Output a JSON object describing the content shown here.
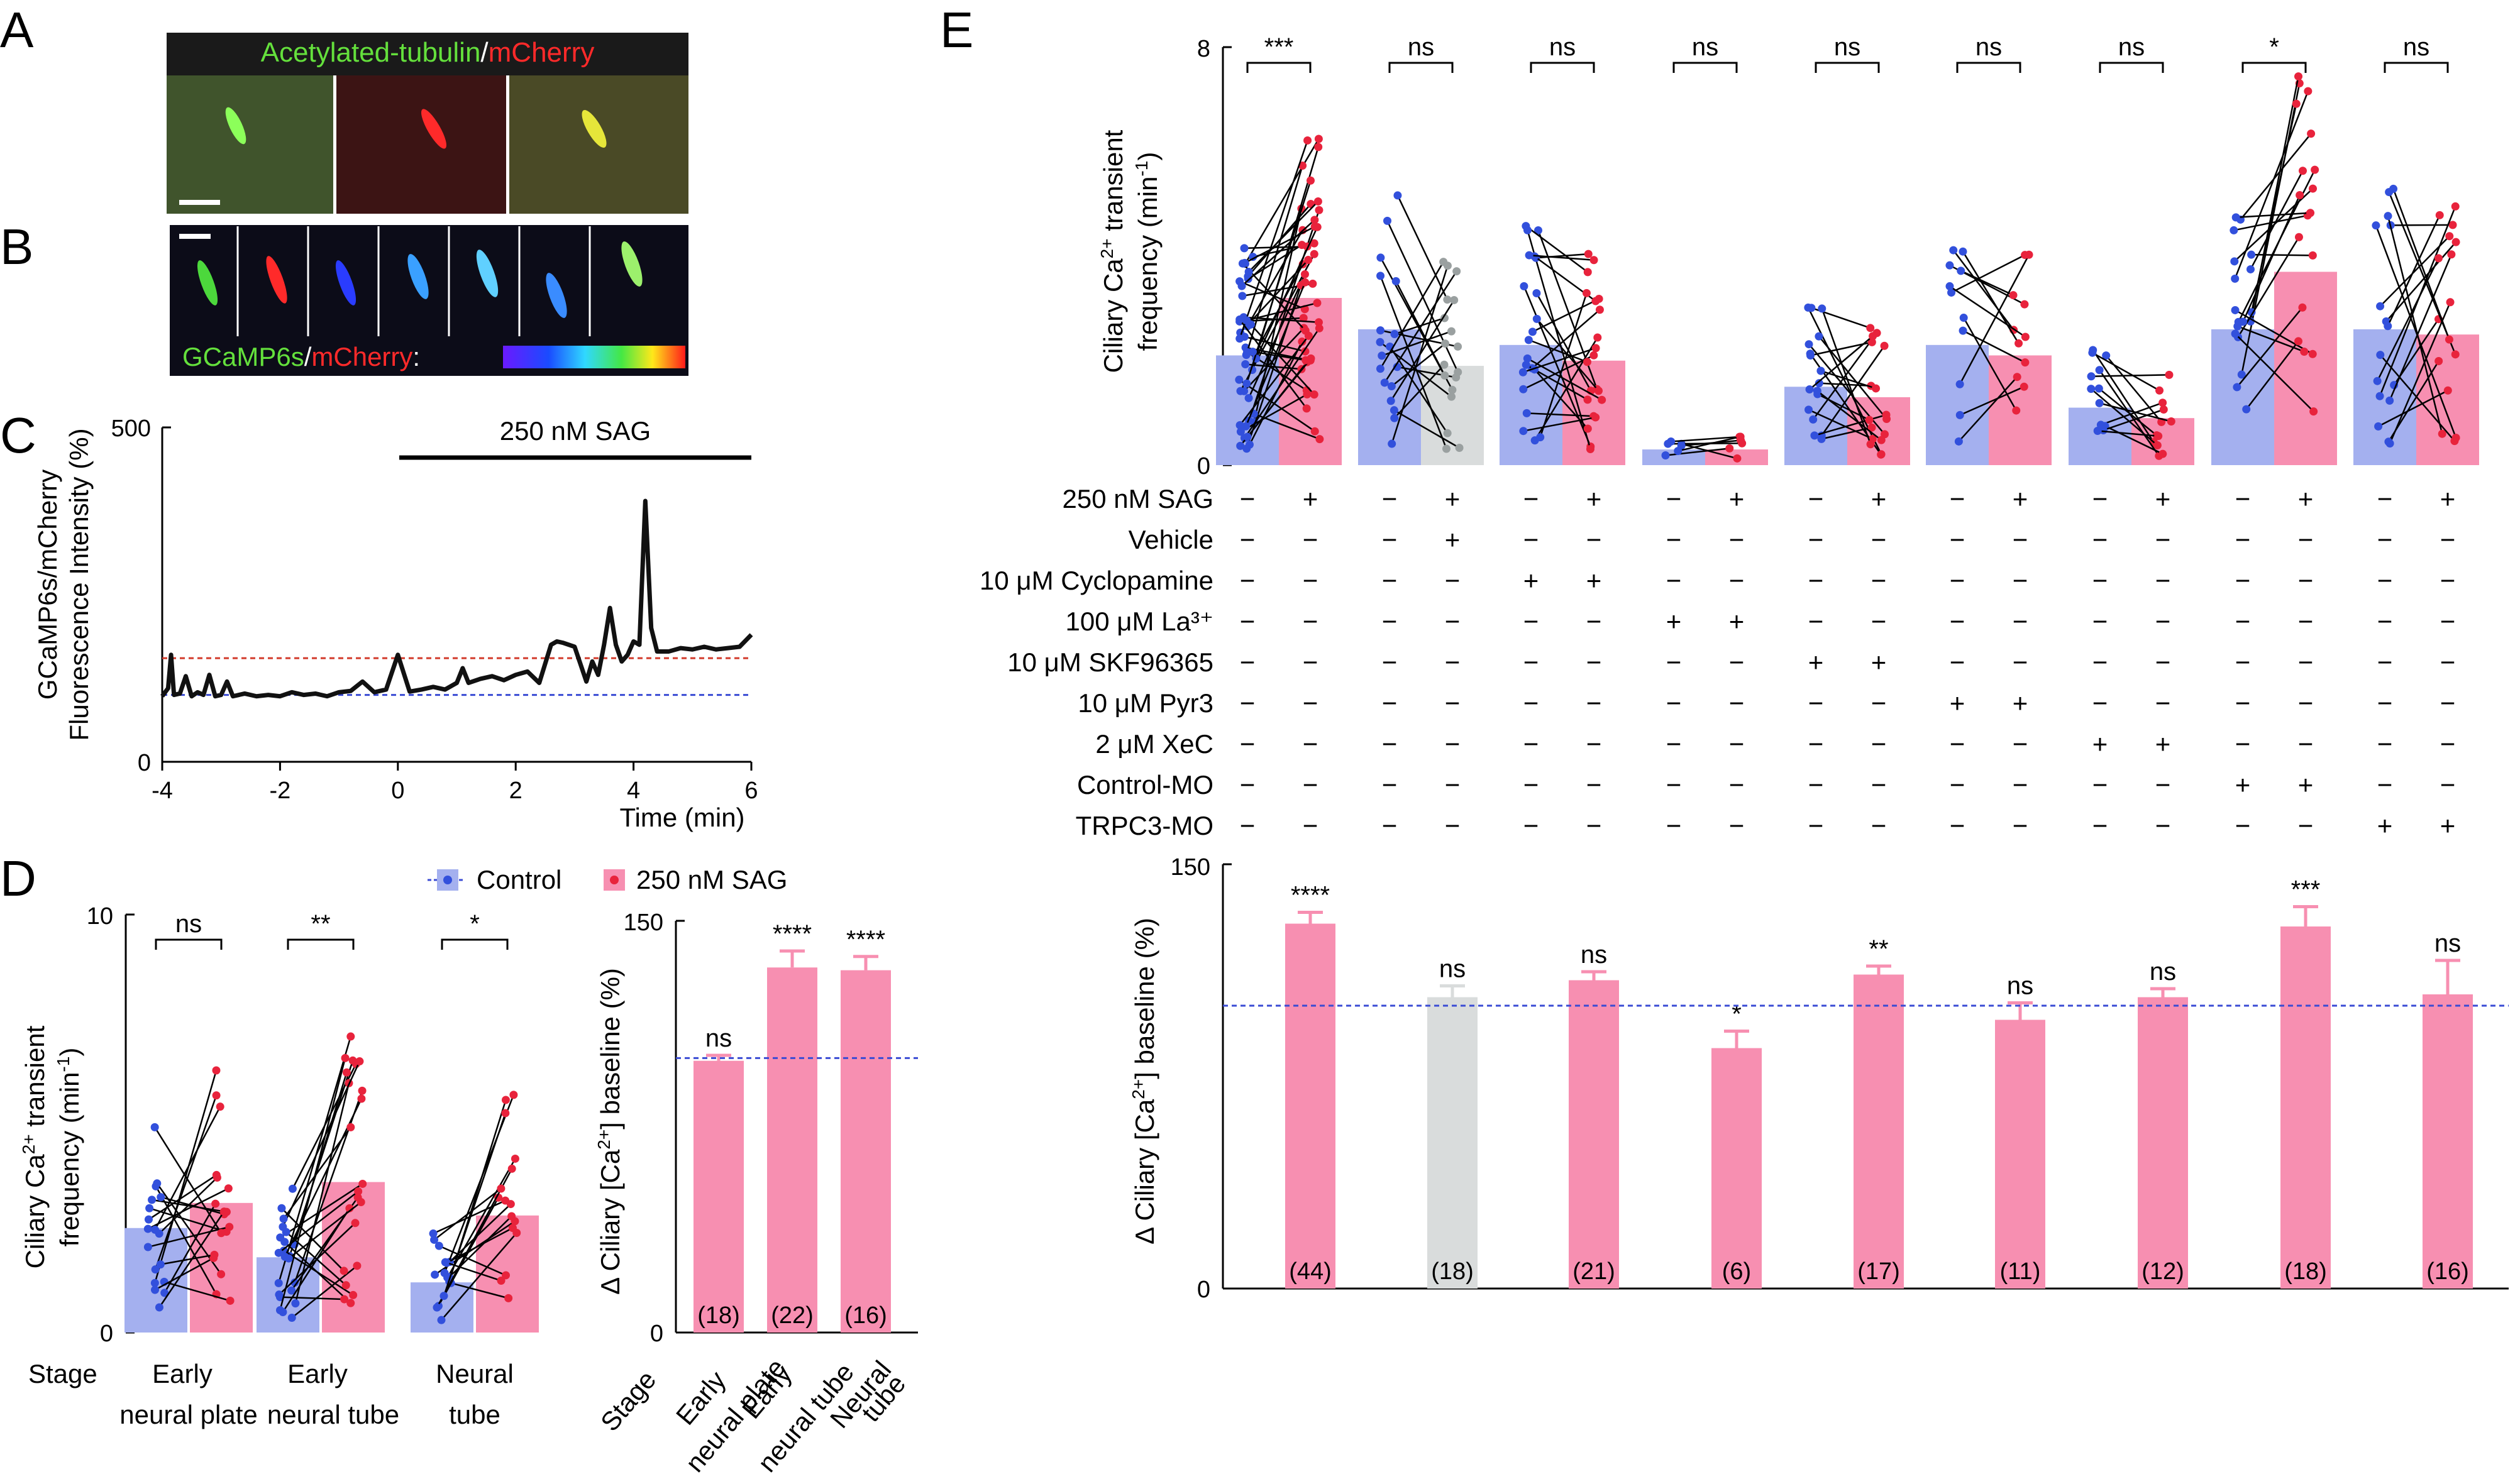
{
  "panels": {
    "A": {
      "letter": "A",
      "title_green": "Acetylated-tubulin",
      "title_sep": "/",
      "title_red": "mCherry"
    },
    "B": {
      "letter": "B",
      "legend_green": "GCaMP6s",
      "legend_sep": "/",
      "legend_red": "mCherry",
      "legend_colon": ":"
    },
    "C": {
      "letter": "C",
      "bar_label": "250 nM SAG",
      "ylabel_line1": "GCaMP6s/mCherry",
      "ylabel_line2": "Fluorescence Intensity (%)",
      "xlabel": "Time (min)",
      "y_ticks": [
        "0",
        "500"
      ],
      "x_ticks": [
        "-4",
        "-2",
        "0",
        "2",
        "4",
        "6"
      ]
    },
    "D": {
      "letter": "D",
      "legend_control": "Control",
      "legend_sag": "250 nM SAG",
      "ylabel_line1": "Ciliary Ca",
      "ylabel_sup": "2+",
      "ylabel_line1b": " transient",
      "ylabel_line2": "frequency (min",
      "ylabel_sup2": "-1",
      "ylabel_line2b": ")",
      "y_ticks": [
        "0",
        "10"
      ],
      "stage_label": "Stage",
      "groups": [
        {
          "line1": "Early",
          "line2": "neural plate",
          "sig": "ns"
        },
        {
          "line1": "Early",
          "line2": "neural tube",
          "sig": "**"
        },
        {
          "line1": "Neural",
          "line2": "tube",
          "sig": "*"
        }
      ],
      "right_ylabel": "Δ Ciliary [Ca",
      "right_ylabel_sup": "2+",
      "right_ylabel_end": "] baseline (%)",
      "right_y_ticks": [
        "0",
        "150"
      ],
      "right_sig": [
        "ns",
        "****",
        "****"
      ],
      "right_n": [
        "(18)",
        "(22)",
        "(16)"
      ]
    },
    "E": {
      "letter": "E",
      "ylabel_line1": "Ciliary Ca",
      "ylabel_sup": "2+",
      "ylabel_line1b": " transient",
      "ylabel_line2": "frequency (min",
      "ylabel_sup2": "-1",
      "ylabel_line2b": ")",
      "y_ticks": [
        "0",
        "8"
      ],
      "sig": [
        "***",
        "ns",
        "ns",
        "ns",
        "ns",
        "ns",
        "ns",
        "*",
        "ns"
      ],
      "treatments": [
        "250 nM SAG",
        "Vehicle",
        "10 μM Cyclopamine",
        "100 μM La³⁺",
        "10 μM SKF96365",
        "10 μM Pyr3",
        "2 μM XeC",
        "Control-MO",
        "TRPC3-MO"
      ],
      "treatment_matrix": [
        [
          "−",
          "+",
          "−",
          "+",
          "−",
          "+",
          "−",
          "+",
          "−",
          "+",
          "−",
          "+",
          "−",
          "+",
          "−",
          "+",
          "−",
          "+"
        ],
        [
          "−",
          "−",
          "−",
          "+",
          "−",
          "−",
          "−",
          "−",
          "−",
          "−",
          "−",
          "−",
          "−",
          "−",
          "−",
          "−",
          "−",
          "−"
        ],
        [
          "−",
          "−",
          "−",
          "−",
          "+",
          "+",
          "−",
          "−",
          "−",
          "−",
          "−",
          "−",
          "−",
          "−",
          "−",
          "−",
          "−",
          "−"
        ],
        [
          "−",
          "−",
          "−",
          "−",
          "−",
          "−",
          "+",
          "+",
          "−",
          "−",
          "−",
          "−",
          "−",
          "−",
          "−",
          "−",
          "−",
          "−"
        ],
        [
          "−",
          "−",
          "−",
          "−",
          "−",
          "−",
          "−",
          "−",
          "+",
          "+",
          "−",
          "−",
          "−",
          "−",
          "−",
          "−",
          "−",
          "−"
        ],
        [
          "−",
          "−",
          "−",
          "−",
          "−",
          "−",
          "−",
          "−",
          "−",
          "−",
          "+",
          "+",
          "−",
          "−",
          "−",
          "−",
          "−",
          "−"
        ],
        [
          "−",
          "−",
          "−",
          "−",
          "−",
          "−",
          "−",
          "−",
          "−",
          "−",
          "−",
          "−",
          "+",
          "+",
          "−",
          "−",
          "−",
          "−"
        ],
        [
          "−",
          "−",
          "−",
          "−",
          "−",
          "−",
          "−",
          "−",
          "−",
          "−",
          "−",
          "−",
          "−",
          "−",
          "+",
          "+",
          "−",
          "−"
        ],
        [
          "−",
          "−",
          "−",
          "−",
          "−",
          "−",
          "−",
          "−",
          "−",
          "−",
          "−",
          "−",
          "−",
          "−",
          "−",
          "−",
          "+",
          "+"
        ]
      ],
      "lower_ylabel": "Δ Ciliary [Ca",
      "lower_ylabel_sup": "2+",
      "lower_ylabel_end": "] baseline (%)",
      "lower_y_ticks": [
        "0",
        "150"
      ],
      "lower_sig": [
        "****",
        "ns",
        "ns",
        "*",
        "**",
        "ns",
        "ns",
        "***",
        "ns"
      ],
      "lower_n": [
        "(44)",
        "(18)",
        "(21)",
        "(6)",
        "(17)",
        "(11)",
        "(12)",
        "(18)",
        "(16)"
      ]
    }
  },
  "colors": {
    "control_bar": "#a4b0ef",
    "sag_bar": "#f78fb1",
    "vehicle_bar": "#d9dcdc",
    "control_dot": "#3250dc",
    "sag_dot": "#e8233c",
    "vehicle_dot": "#9aa0a0",
    "baseline_line": "#3a4bd4",
    "threshold_line": "#d23a2a"
  },
  "chart_data": [
    {
      "panel": "C",
      "type": "line",
      "xlabel": "Time (min)",
      "ylabel": "GCaMP6s/mCherry Fluorescence Intensity (%)",
      "xlim": [
        -4,
        6
      ],
      "ylim": [
        0,
        500
      ],
      "baseline": 100,
      "threshold": 155,
      "treatment_start": 0,
      "treatment_end": 6,
      "x": [
        -4.0,
        -3.9,
        -3.85,
        -3.8,
        -3.7,
        -3.6,
        -3.5,
        -3.4,
        -3.3,
        -3.2,
        -3.1,
        -3.0,
        -2.9,
        -2.8,
        -2.6,
        -2.4,
        -2.2,
        -2.0,
        -1.8,
        -1.6,
        -1.4,
        -1.2,
        -1.0,
        -0.8,
        -0.6,
        -0.4,
        -0.2,
        0.0,
        0.2,
        0.4,
        0.6,
        0.8,
        1.0,
        1.1,
        1.2,
        1.4,
        1.6,
        1.8,
        2.0,
        2.2,
        2.4,
        2.6,
        2.7,
        2.8,
        3.0,
        3.2,
        3.3,
        3.4,
        3.5,
        3.6,
        3.7,
        3.8,
        3.9,
        4.0,
        4.1,
        4.2,
        4.3,
        4.4,
        4.6,
        4.8,
        5.0,
        5.2,
        5.4,
        5.6,
        5.8,
        6.0
      ],
      "y": [
        98,
        110,
        160,
        100,
        102,
        128,
        98,
        104,
        100,
        130,
        98,
        100,
        120,
        98,
        102,
        98,
        100,
        98,
        104,
        100,
        102,
        98,
        104,
        106,
        120,
        104,
        108,
        160,
        105,
        108,
        112,
        108,
        118,
        140,
        118,
        124,
        128,
        122,
        130,
        135,
        118,
        175,
        180,
        178,
        172,
        120,
        150,
        130,
        175,
        230,
        175,
        150,
        160,
        180,
        175,
        390,
        200,
        165,
        165,
        170,
        168,
        172,
        168,
        170,
        172,
        190
      ]
    },
    {
      "panel": "D-left",
      "type": "bar",
      "ylabel": "Ciliary Ca2+ transient frequency (min-1)",
      "ylim": [
        0,
        10
      ],
      "categories": [
        "Early neural plate",
        "Early neural tube",
        "Neural tube"
      ],
      "series": [
        {
          "name": "Control",
          "values": [
            2.5,
            1.8,
            1.2
          ]
        },
        {
          "name": "250 nM SAG",
          "values": [
            3.1,
            3.6,
            2.8
          ]
        }
      ],
      "significance": [
        "ns",
        "**",
        "*"
      ]
    },
    {
      "panel": "D-right",
      "type": "bar",
      "ylabel": "Δ Ciliary [Ca2+] baseline (%)",
      "ylim": [
        0,
        150
      ],
      "baseline": 100,
      "categories": [
        "Early neural plate",
        "Early neural tube",
        "Neural tube"
      ],
      "values": [
        99,
        133,
        132
      ],
      "errors": [
        2,
        6,
        5
      ],
      "n": [
        "(18)",
        "(22)",
        "(16)"
      ],
      "significance": [
        "ns",
        "****",
        "****"
      ]
    },
    {
      "panel": "E-upper",
      "type": "bar",
      "ylabel": "Ciliary Ca2+ transient frequency (min-1)",
      "ylim": [
        0,
        8
      ],
      "groups": 9,
      "series": [
        {
          "name": "Control",
          "values": [
            2.1,
            2.6,
            2.3,
            0.3,
            1.5,
            2.3,
            1.1,
            2.6,
            2.6
          ]
        },
        {
          "name": "250 nM SAG",
          "values": [
            3.2,
            1.9,
            2.0,
            0.3,
            1.3,
            2.1,
            0.9,
            3.7,
            2.5
          ]
        }
      ],
      "significance": [
        "***",
        "ns",
        "ns",
        "ns",
        "ns",
        "ns",
        "ns",
        "*",
        "ns"
      ]
    },
    {
      "panel": "E-lower",
      "type": "bar",
      "ylabel": "Δ Ciliary [Ca2+] baseline (%)",
      "ylim": [
        0,
        150
      ],
      "baseline": 100,
      "values": [
        129,
        103,
        109,
        85,
        111,
        95,
        103,
        128,
        104
      ],
      "errors": [
        4,
        4,
        3,
        6,
        3,
        6,
        3,
        7,
        12
      ],
      "n": [
        "(44)",
        "(18)",
        "(21)",
        "(6)",
        "(17)",
        "(11)",
        "(12)",
        "(18)",
        "(16)"
      ],
      "significance": [
        "****",
        "ns",
        "ns",
        "*",
        "**",
        "ns",
        "ns",
        "***",
        "ns"
      ]
    }
  ]
}
